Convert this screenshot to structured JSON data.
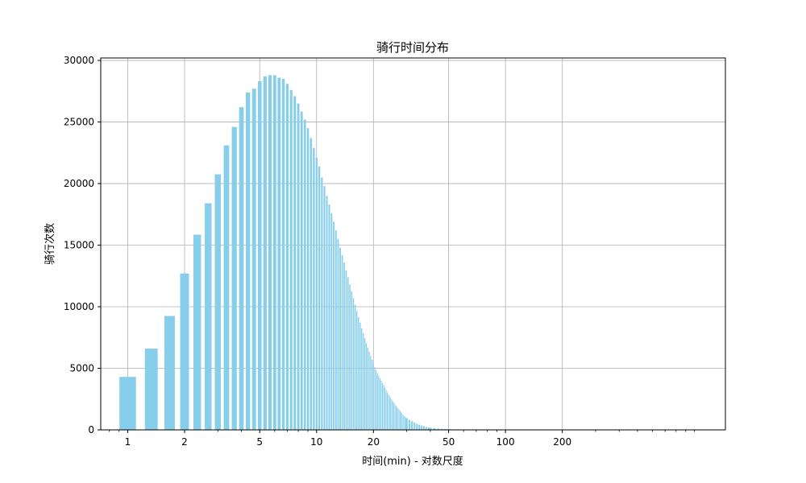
{
  "chart_data": {
    "type": "bar",
    "title": "骑行时间分布",
    "xlabel": "时间(min) - 对数尺度",
    "ylabel": "骑行次数",
    "xscale": "log",
    "xlim": [
      0.72,
      1460
    ],
    "ylim": [
      0,
      30200
    ],
    "grid": true,
    "bar_color": "#87ceeb",
    "x_tick_values": [
      1,
      2,
      5,
      10,
      20,
      50,
      100,
      200
    ],
    "x_tick_labels": [
      "1",
      "2",
      "5",
      "10",
      "20",
      "50",
      "100",
      "200"
    ],
    "y_tick_values": [
      0,
      5000,
      10000,
      15000,
      20000,
      25000,
      30000
    ],
    "y_tick_labels": [
      "0",
      "5000",
      "10000",
      "15000",
      "20000",
      "25000",
      "30000"
    ],
    "x": [
      1.0,
      1.333,
      1.667,
      2.0,
      2.333,
      2.667,
      3.0,
      3.333,
      3.667,
      4.0,
      4.333,
      4.667,
      5.0,
      5.333,
      5.667,
      6.0,
      6.333,
      6.667,
      7.0,
      7.333,
      7.667,
      8.0,
      8.333,
      8.667,
      9.0,
      9.333,
      9.667,
      10.0,
      10.333,
      10.667,
      11.0,
      11.333,
      11.667,
      12.0,
      12.333,
      12.667,
      13.0,
      13.333,
      13.667,
      14.0,
      14.333,
      14.667,
      15.0,
      15.333,
      15.667,
      16.0,
      16.333,
      16.667,
      17.0,
      17.333,
      17.667,
      18.0,
      18.333,
      18.667,
      19.0,
      19.333,
      19.667,
      20.0,
      20.333,
      20.667,
      21.0,
      21.333,
      21.667,
      22.0,
      22.333,
      22.667,
      23.0,
      23.333,
      23.667,
      24.0,
      24.333,
      24.667,
      25.0,
      25.333,
      25.667,
      26.0,
      26.333,
      26.667,
      27.0,
      27.333,
      27.667,
      28.0,
      28.333,
      28.667,
      29.0,
      29.333,
      29.667,
      30.0,
      31.0,
      32.0,
      33.0,
      34.0,
      35.0,
      36.0,
      37.0,
      38.0,
      39.0,
      40.0,
      42.0,
      44.0,
      46.0,
      48.0,
      50.0,
      55.0,
      60.0,
      70.0,
      80.0,
      90.0
    ],
    "values": [
      4300,
      6600,
      9250,
      12700,
      15850,
      18400,
      20750,
      23100,
      24600,
      26200,
      27400,
      27700,
      28300,
      28700,
      28800,
      28800,
      28600,
      28500,
      28100,
      27600,
      27100,
      26500,
      25850,
      25200,
      24500,
      23700,
      22900,
      22100,
      21400,
      20500,
      19800,
      19000,
      18300,
      17600,
      16900,
      16200,
      15500,
      14800,
      14200,
      13600,
      12950,
      12400,
      11800,
      11250,
      10700,
      10150,
      9650,
      9150,
      8700,
      8250,
      7850,
      7450,
      7050,
      6700,
      6350,
      6000,
      5700,
      5400,
      5100,
      4850,
      4600,
      4400,
      4200,
      4000,
      3800,
      3650,
      3450,
      3250,
      3050,
      2900,
      2750,
      2600,
      2450,
      2300,
      2200,
      2050,
      1950,
      1850,
      1750,
      1650,
      1550,
      1450,
      1350,
      1250,
      1150,
      1100,
      1000,
      950,
      800,
      700,
      600,
      500,
      420,
      360,
      300,
      250,
      200,
      170,
      130,
      100,
      80,
      60,
      50,
      40,
      30,
      20,
      15,
      10
    ]
  }
}
